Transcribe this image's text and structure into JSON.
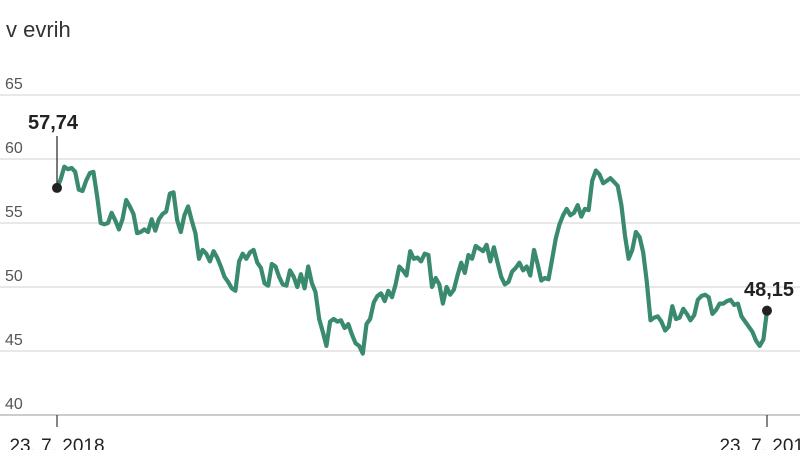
{
  "chart_data": {
    "type": "line",
    "ylabel": "v evrih",
    "ylim": [
      40,
      65
    ],
    "yticks": [
      "65",
      "60",
      "55",
      "50",
      "45",
      "40"
    ],
    "xticks": [
      "23. 7. 2018",
      "23. 7. 2019"
    ],
    "grid": true,
    "colors": {
      "line": "#3a8a6e",
      "marker": "#222222",
      "grid": "#d0d0d0"
    },
    "start_label": "57,74",
    "end_label": "48,15",
    "series": [
      {
        "values": [
          57.74,
          58.4,
          59.4,
          59.2,
          59.3,
          59.0,
          57.6,
          57.5,
          58.3,
          58.9,
          59.0,
          57.1,
          55.0,
          54.9,
          55.0,
          55.8,
          55.2,
          54.5,
          55.3,
          56.8,
          56.3,
          55.7,
          54.2,
          54.3,
          54.5,
          54.3,
          55.3,
          54.4,
          55.3,
          55.7,
          55.9,
          57.3,
          57.4,
          55.2,
          54.3,
          55.6,
          56.3,
          55.2,
          54.2,
          52.2,
          52.9,
          52.6,
          52.0,
          52.8,
          52.3,
          51.6,
          50.8,
          50.4,
          49.9,
          49.7,
          52.0,
          52.6,
          52.2,
          52.7,
          52.9,
          51.9,
          51.5,
          50.3,
          50.1,
          51.8,
          51.6,
          50.8,
          50.2,
          50.1,
          51.3,
          50.8,
          50.0,
          51.0,
          49.9,
          51.6,
          50.3,
          49.6,
          47.5,
          46.5,
          45.4,
          47.3,
          47.5,
          47.3,
          47.4,
          46.8,
          47.1,
          46.3,
          45.6,
          45.4,
          44.8,
          47.1,
          47.5,
          48.8,
          49.3,
          49.5,
          48.9,
          49.7,
          49.2,
          50.2,
          51.6,
          51.3,
          50.9,
          52.8,
          52.2,
          52.3,
          52.0,
          52.6,
          52.5,
          50.0,
          50.7,
          50.2,
          48.7,
          50.0,
          49.4,
          49.8,
          50.9,
          51.9,
          51.1,
          52.5,
          52.2,
          53.2,
          53.0,
          52.8,
          53.3,
          52.0,
          53.1,
          51.9,
          50.8,
          50.2,
          50.4,
          51.2,
          51.5,
          51.9,
          51.3,
          51.6,
          50.9,
          52.9,
          51.8,
          50.5,
          50.7,
          50.6,
          52.2,
          53.8,
          54.9,
          55.6,
          56.1,
          55.6,
          55.8,
          56.4,
          55.5,
          56.1,
          56.0,
          58.3,
          59.1,
          58.8,
          58.1,
          58.3,
          58.5,
          58.2,
          57.9,
          56.4,
          54.0,
          52.2,
          52.9,
          54.3,
          53.9,
          52.7,
          50.4,
          47.4,
          47.6,
          47.7,
          47.3,
          46.6,
          46.9,
          48.5,
          47.5,
          47.6,
          48.3,
          47.9,
          47.4,
          47.8,
          49.0,
          49.3,
          49.4,
          49.2,
          47.9,
          48.2,
          48.7,
          48.7,
          48.9,
          49.0,
          48.6,
          48.7,
          47.7,
          47.3,
          46.9,
          46.5,
          45.8,
          45.4,
          45.9,
          48.15
        ]
      }
    ]
  }
}
